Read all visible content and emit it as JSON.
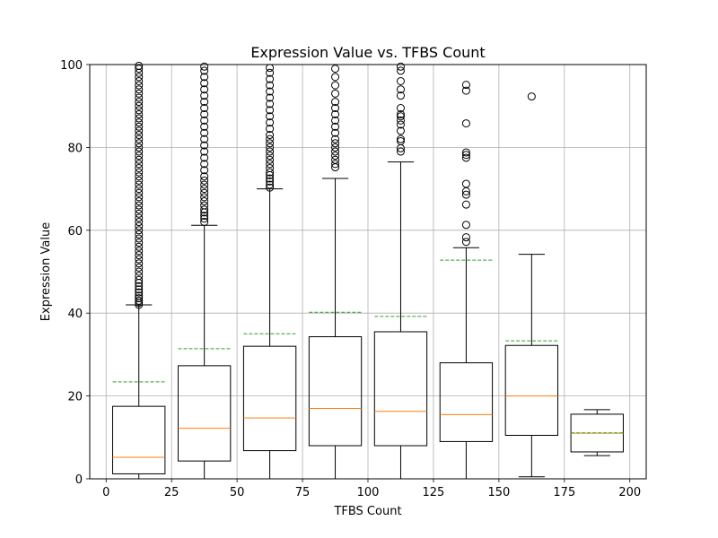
{
  "chart_data": {
    "type": "box",
    "title": "Expression Value vs. TFBS Count",
    "xlabel": "TFBS Count",
    "ylabel": "Expression Value",
    "xlim": [
      -6.25,
      206.25
    ],
    "ylim": [
      0,
      100
    ],
    "xticks": [
      0,
      25,
      50,
      75,
      100,
      125,
      150,
      175,
      200
    ],
    "yticks": [
      0,
      20,
      40,
      60,
      80,
      100
    ],
    "grid": true,
    "colors": {
      "box": "#000000",
      "median": "#ff7f0e",
      "mean": "#2ca02c",
      "grid": "#b0b0b0"
    },
    "boxes": [
      {
        "position": 12.5,
        "whisker_low": 0,
        "q1": 1.2,
        "median": 5.2,
        "q3": 17.5,
        "whisker_high": 42,
        "mean": 23.4,
        "outliers": [
          42,
          42.5,
          43,
          43.6,
          44.2,
          45,
          45.7,
          46.5,
          47.3,
          48,
          49,
          50,
          51,
          52,
          53,
          54,
          55,
          56,
          57,
          58,
          59,
          60,
          61,
          62,
          63,
          64,
          65,
          66,
          67,
          68,
          69,
          70,
          71,
          72,
          73,
          74,
          75,
          76,
          77,
          78,
          79,
          80,
          81,
          82,
          83,
          84,
          85,
          86,
          87,
          88,
          89,
          90,
          91,
          92,
          93,
          94,
          95,
          96,
          97,
          98,
          99,
          99.7
        ]
      },
      {
        "position": 37.5,
        "whisker_low": 0,
        "q1": 4.3,
        "median": 12.2,
        "q3": 27.3,
        "whisker_high": 61.2,
        "mean": 31.4,
        "outliers": [
          62,
          62.8,
          63.5,
          64.3,
          65,
          66,
          67,
          68,
          69,
          70,
          71,
          72,
          73,
          74.5,
          76,
          77.5,
          79,
          80.5,
          82,
          83.5,
          85,
          86.5,
          88,
          89.5,
          91,
          92.5,
          94,
          95.5,
          97,
          98.5,
          99.5
        ]
      },
      {
        "position": 62.5,
        "whisker_low": 0,
        "q1": 6.8,
        "median": 14.7,
        "q3": 32,
        "whisker_high": 70,
        "mean": 35,
        "outliers": [
          70.3,
          71,
          71.8,
          72.5,
          73.3,
          74,
          75,
          76,
          77,
          78,
          79,
          80,
          81,
          82,
          83,
          84.5,
          86,
          87.5,
          89,
          90.5,
          92,
          93.5,
          95,
          96.5,
          98,
          99.2
        ]
      },
      {
        "position": 87.5,
        "whisker_low": 0,
        "q1": 8,
        "median": 17,
        "q3": 34.3,
        "whisker_high": 72.5,
        "mean": 40.2,
        "outliers": [
          75.2,
          76,
          77,
          78,
          79,
          80,
          81,
          82,
          83.5,
          85,
          86.5,
          88,
          89.5,
          91,
          93,
          95,
          97,
          99
        ]
      },
      {
        "position": 112.5,
        "whisker_low": 0,
        "q1": 8,
        "median": 16.3,
        "q3": 35.5,
        "whisker_high": 76.5,
        "mean": 39.2,
        "outliers": [
          79,
          79.8,
          81.5,
          82,
          84,
          85.5,
          86.5,
          87.5,
          88,
          89.5,
          92.5,
          94,
          96,
          98.5,
          99.5
        ]
      },
      {
        "position": 137.5,
        "whisker_low": 0,
        "q1": 9,
        "median": 15.5,
        "q3": 28,
        "whisker_high": 55.8,
        "mean": 52.8,
        "outliers": [
          57.2,
          58.3,
          61.3,
          66.2,
          68.6,
          69.4,
          71.2,
          77.5,
          78.2,
          78.8,
          85.8,
          93.7,
          95.1
        ]
      },
      {
        "position": 162.5,
        "whisker_low": 0.5,
        "q1": 10.5,
        "median": 20,
        "q3": 32.2,
        "whisker_high": 54.2,
        "mean": 33.3,
        "outliers": [
          92.3
        ]
      },
      {
        "position": 187.5,
        "whisker_low": 5.6,
        "q1": 6.5,
        "median": 11,
        "q3": 15.6,
        "whisker_high": 16.7,
        "mean": 11.1,
        "outliers": []
      }
    ]
  }
}
